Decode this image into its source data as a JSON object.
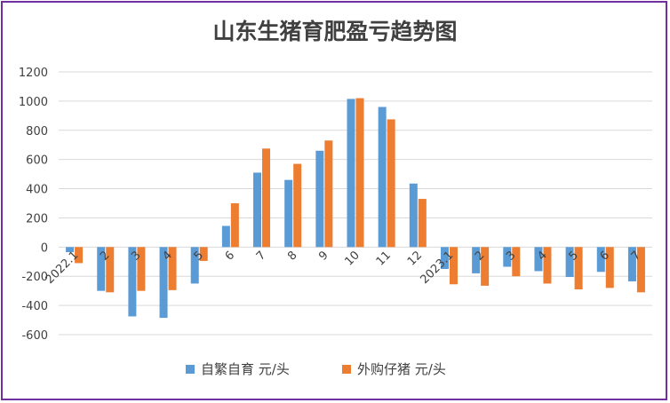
{
  "chart_data": {
    "type": "bar",
    "title": "山东生猪育肥盈亏趋势图",
    "xlabel": "",
    "ylabel": "",
    "categories": [
      "2022.1",
      "2",
      "3",
      "4",
      "5",
      "6",
      "7",
      "8",
      "9",
      "10",
      "11",
      "12",
      "2023.1",
      "2",
      "3",
      "4",
      "5",
      "6",
      "7"
    ],
    "series": [
      {
        "name": "自繁自育 元/头",
        "color": "#5B9BD5",
        "values": [
          -35,
          -300,
          -475,
          -485,
          -250,
          145,
          510,
          460,
          660,
          1015,
          960,
          435,
          -150,
          -180,
          -135,
          -165,
          -205,
          -170,
          -235
        ]
      },
      {
        "name": "外购仔猪 元/头",
        "color": "#ED7D31",
        "values": [
          -110,
          -310,
          -300,
          -295,
          -95,
          300,
          675,
          570,
          730,
          1020,
          875,
          330,
          -255,
          -265,
          -200,
          -250,
          -290,
          -280,
          -310
        ]
      }
    ],
    "ylim": [
      -600,
      1200
    ],
    "yticks": [
      -600,
      -400,
      -200,
      0,
      200,
      400,
      600,
      800,
      1000,
      1200
    ],
    "grid": true,
    "legend": "bottom",
    "frame_color": "#7030A0"
  }
}
